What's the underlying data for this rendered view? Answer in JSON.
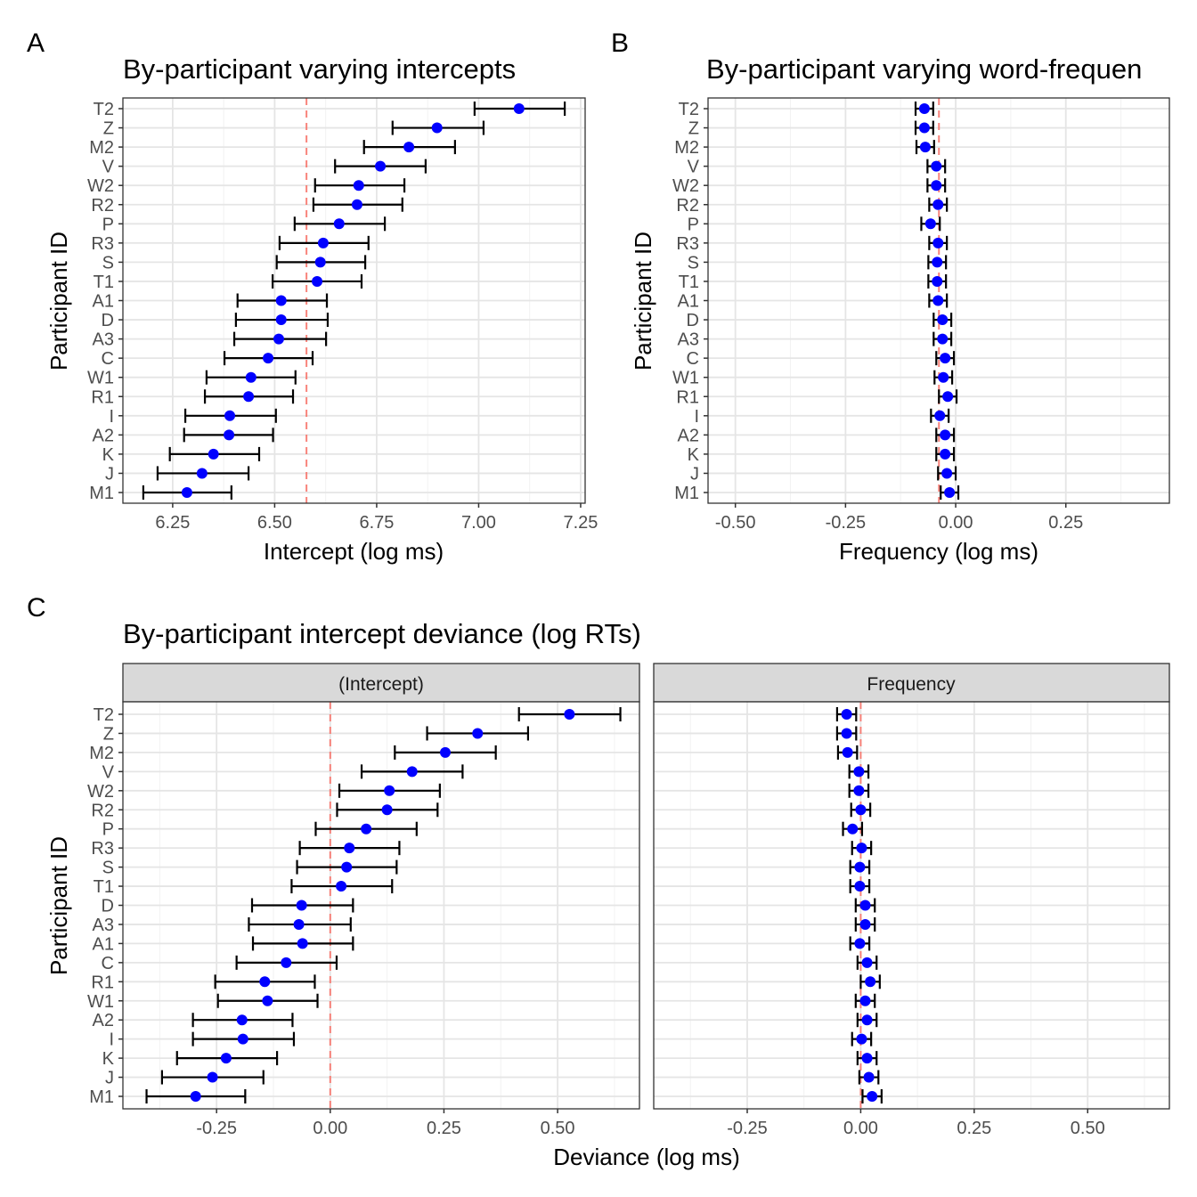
{
  "chart_data": [
    {
      "type": "scatter",
      "panel_tag": "A",
      "title": "By-participant varying intercepts",
      "xlabel": "Intercept (log ms)",
      "ylabel": "Participant ID",
      "xlim": [
        6.128,
        7.261
      ],
      "xticks": [
        "6.25",
        "6.50",
        "6.75",
        "7.00",
        "7.25"
      ],
      "grid": true,
      "point_color": "#0000FF",
      "reference_line": {
        "x": 6.578,
        "color": "#F8766D",
        "style": "dashed"
      },
      "categories": [
        "T2",
        "Z",
        "M2",
        "V",
        "W2",
        "R2",
        "P",
        "R3",
        "S",
        "T1",
        "A1",
        "D",
        "A3",
        "C",
        "W1",
        "R1",
        "I",
        "A2",
        "K",
        "J",
        "M1"
      ],
      "estimate": [
        7.099,
        6.898,
        6.829,
        6.759,
        6.706,
        6.702,
        6.658,
        6.619,
        6.612,
        6.604,
        6.516,
        6.516,
        6.51,
        6.484,
        6.442,
        6.436,
        6.39,
        6.388,
        6.35,
        6.322,
        6.285
      ],
      "lower": [
        6.99,
        6.789,
        6.719,
        6.648,
        6.599,
        6.595,
        6.549,
        6.512,
        6.505,
        6.495,
        6.409,
        6.405,
        6.401,
        6.377,
        6.333,
        6.329,
        6.281,
        6.278,
        6.243,
        6.213,
        6.178
      ],
      "upper": [
        7.211,
        7.012,
        6.942,
        6.87,
        6.818,
        6.813,
        6.77,
        6.73,
        6.722,
        6.713,
        6.628,
        6.63,
        6.626,
        6.593,
        6.551,
        6.545,
        6.503,
        6.496,
        6.462,
        6.436,
        6.394
      ]
    },
    {
      "type": "scatter",
      "panel_tag": "B",
      "title": "By-participant varying word-frequen",
      "xlabel": "Frequency (log ms)",
      "ylabel": "Participant ID",
      "xlim": [
        -0.562,
        0.485
      ],
      "xticks": [
        "-0.50",
        "-0.25",
        "0.00",
        "0.25"
      ],
      "grid": true,
      "point_color": "#0000FF",
      "reference_line": {
        "x": -0.038,
        "color": "#F8766D",
        "style": "dashed"
      },
      "categories": [
        "T2",
        "Z",
        "M2",
        "V",
        "W2",
        "R2",
        "P",
        "R3",
        "S",
        "T1",
        "A1",
        "D",
        "A3",
        "C",
        "W1",
        "R1",
        "I",
        "A2",
        "K",
        "J",
        "M1"
      ],
      "estimate": [
        -0.071,
        -0.071,
        -0.069,
        -0.044,
        -0.044,
        -0.04,
        -0.057,
        -0.04,
        -0.042,
        -0.042,
        -0.04,
        -0.03,
        -0.03,
        -0.024,
        -0.028,
        -0.018,
        -0.036,
        -0.024,
        -0.024,
        -0.02,
        -0.014
      ],
      "lower": [
        -0.091,
        -0.091,
        -0.089,
        -0.064,
        -0.064,
        -0.06,
        -0.078,
        -0.06,
        -0.062,
        -0.062,
        -0.06,
        -0.05,
        -0.05,
        -0.044,
        -0.048,
        -0.038,
        -0.056,
        -0.044,
        -0.044,
        -0.04,
        -0.034
      ],
      "upper": [
        -0.051,
        -0.051,
        -0.049,
        -0.024,
        -0.024,
        -0.02,
        -0.036,
        -0.02,
        -0.022,
        -0.022,
        -0.02,
        -0.01,
        -0.01,
        -0.004,
        -0.008,
        0.002,
        -0.016,
        -0.004,
        -0.004,
        0.0,
        0.006
      ]
    },
    {
      "type": "scatter",
      "panel_tag": "C",
      "title": "By-participant intercept deviance (log RTs)",
      "xlabel": "Deviance (log ms)",
      "ylabel": "Participant ID",
      "xlim": [
        -0.456,
        0.68
      ],
      "xticks": [
        "-0.25",
        "0.00",
        "0.25",
        "0.50"
      ],
      "grid": true,
      "point_color": "#0000FF",
      "categories": [
        "T2",
        "Z",
        "M2",
        "V",
        "W2",
        "R2",
        "P",
        "R3",
        "S",
        "T1",
        "D",
        "A3",
        "A1",
        "C",
        "R1",
        "W1",
        "A2",
        "I",
        "K",
        "J",
        "M1"
      ],
      "facets": [
        {
          "strip": "(Intercept)",
          "reference_line": {
            "x": 0,
            "color": "#F8766D",
            "style": "dashed"
          },
          "estimate": [
            0.526,
            0.324,
            0.253,
            0.18,
            0.13,
            0.125,
            0.079,
            0.042,
            0.036,
            0.024,
            -0.063,
            -0.069,
            -0.061,
            -0.097,
            -0.144,
            -0.138,
            -0.194,
            -0.192,
            -0.229,
            -0.259,
            -0.296
          ],
          "lower": [
            0.415,
            0.213,
            0.142,
            0.069,
            0.02,
            0.015,
            -0.032,
            -0.067,
            -0.073,
            -0.085,
            -0.172,
            -0.179,
            -0.17,
            -0.206,
            -0.253,
            -0.247,
            -0.302,
            -0.302,
            -0.337,
            -0.37,
            -0.404
          ],
          "upper": [
            0.638,
            0.435,
            0.364,
            0.291,
            0.241,
            0.236,
            0.19,
            0.152,
            0.146,
            0.136,
            0.05,
            0.045,
            0.05,
            0.014,
            -0.034,
            -0.028,
            -0.083,
            -0.08,
            -0.117,
            -0.147,
            -0.187
          ]
        },
        {
          "strip": "Frequency",
          "reference_line": {
            "x": 0,
            "color": "#F8766D",
            "style": "dashed"
          },
          "estimate": [
            -0.031,
            -0.031,
            -0.029,
            -0.004,
            -0.004,
            0.0,
            -0.018,
            0.002,
            -0.002,
            -0.002,
            0.01,
            0.01,
            -0.002,
            0.014,
            0.021,
            0.01,
            0.014,
            0.002,
            0.014,
            0.018,
            0.025
          ],
          "lower": [
            -0.052,
            -0.052,
            -0.05,
            -0.025,
            -0.025,
            -0.021,
            -0.039,
            -0.019,
            -0.023,
            -0.023,
            -0.011,
            -0.011,
            -0.023,
            -0.007,
            0.0,
            -0.011,
            -0.007,
            -0.019,
            -0.007,
            -0.003,
            0.004
          ],
          "upper": [
            -0.01,
            -0.01,
            -0.008,
            0.017,
            0.017,
            0.021,
            0.003,
            0.023,
            0.019,
            0.019,
            0.031,
            0.031,
            0.019,
            0.035,
            0.042,
            0.031,
            0.035,
            0.023,
            0.035,
            0.039,
            0.046
          ]
        }
      ]
    }
  ]
}
